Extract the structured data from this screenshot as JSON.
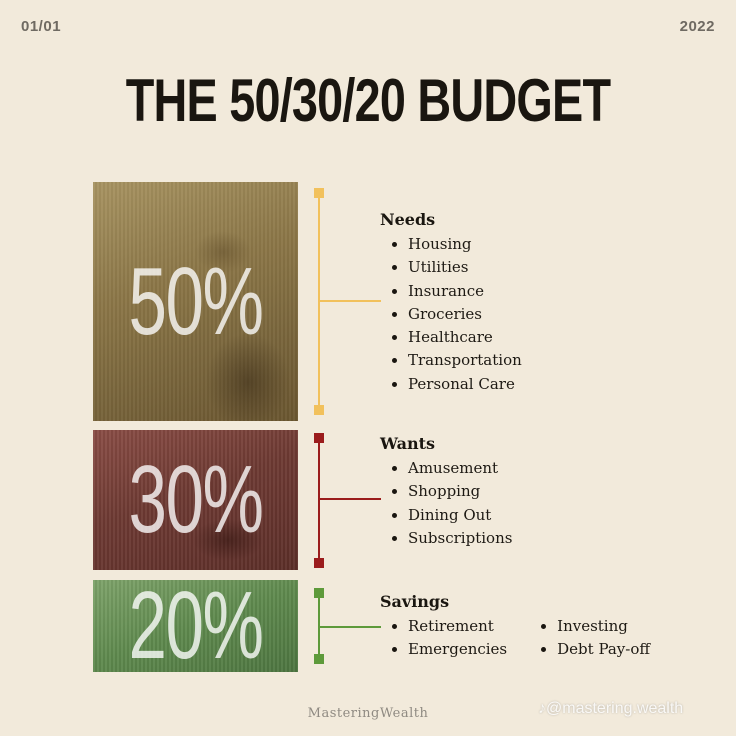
{
  "header": {
    "page_indicator": "01/01",
    "year": "2022"
  },
  "title": "THE 50/30/20 BUDGET",
  "colors": {
    "needs": "#f2c15c",
    "wants": "#9b1c1c",
    "savings": "#5e9a3a"
  },
  "categories": [
    {
      "key": "needs",
      "percent": "50%",
      "heading": "Needs",
      "items": [
        "Housing",
        "Utilities",
        "Insurance",
        "Groceries",
        "Healthcare",
        "Transportation",
        "Personal Care"
      ]
    },
    {
      "key": "wants",
      "percent": "30%",
      "heading": "Wants",
      "items": [
        "Amusement",
        "Shopping",
        "Dining Out",
        "Subscriptions"
      ]
    },
    {
      "key": "savings",
      "percent": "20%",
      "heading": "Savings",
      "items": [
        "Retirement",
        "Emergencies",
        "Investing",
        "Debt Pay-off"
      ]
    }
  ],
  "footer": "MasteringWealth",
  "watermark": "♪@mastering.wealth",
  "icons": {
    "watermark_icon": "tiktok-icon"
  }
}
